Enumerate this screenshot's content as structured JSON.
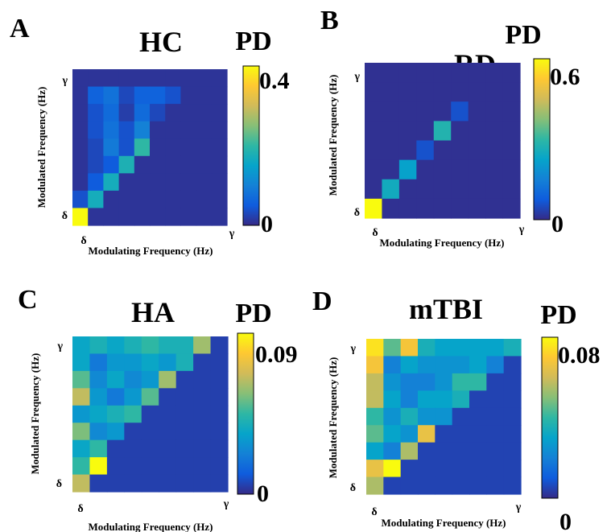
{
  "chart_data": [
    {
      "type": "heatmap",
      "panel": "A",
      "title": "HC",
      "colorbar_title": "PD",
      "colorbar_ticks": [
        "0.4",
        "0"
      ],
      "clim": [
        0,
        0.4
      ],
      "xlabel": "Modulating Frequency (Hz)",
      "ylabel": "Modulated Frequency (Hz)",
      "x_ticks": [
        "δ",
        "γ"
      ],
      "y_ticks": [
        "δ",
        "γ"
      ],
      "rows_top_to_bottom": [
        [
          0.01,
          0.01,
          0.01,
          0.01,
          0.01,
          0.01,
          0.01,
          0.01,
          0.01,
          0.01
        ],
        [
          0.01,
          0.06,
          0.08,
          0.03,
          0.06,
          0.06,
          0.04,
          0.01,
          0.01,
          0.01
        ],
        [
          0.01,
          0.04,
          0.07,
          0.02,
          0.07,
          0.03,
          0.01,
          0.01,
          0.01,
          0.01
        ],
        [
          0.01,
          0.04,
          0.08,
          0.04,
          0.1,
          0.01,
          0.01,
          0.01,
          0.01,
          0.01
        ],
        [
          0.01,
          0.03,
          0.09,
          0.04,
          0.2,
          0.01,
          0.01,
          0.01,
          0.01,
          0.01
        ],
        [
          0.01,
          0.03,
          0.05,
          0.18,
          0.01,
          0.01,
          0.01,
          0.01,
          0.01,
          0.01
        ],
        [
          0.01,
          0.05,
          0.17,
          0.01,
          0.01,
          0.01,
          0.01,
          0.01,
          0.01,
          0.01
        ],
        [
          0.04,
          0.17,
          0.01,
          0.01,
          0.01,
          0.01,
          0.01,
          0.01,
          0.01,
          0.01
        ],
        [
          0.4,
          0.01,
          0.01,
          0.01,
          0.01,
          0.01,
          0.01,
          0.01,
          0.01,
          0.01
        ]
      ]
    },
    {
      "type": "heatmap",
      "panel": "B",
      "title": "RD",
      "colorbar_title": "PD",
      "colorbar_ticks": [
        "0.6",
        "0"
      ],
      "clim": [
        0,
        0.6
      ],
      "xlabel": "Modulating Frequency (Hz)",
      "ylabel": "Modulated Frequency (Hz)",
      "x_ticks": [
        "δ",
        "γ"
      ],
      "y_ticks": [
        "δ",
        "γ"
      ],
      "rows_top_to_bottom": [
        [
          0.01,
          0.01,
          0.01,
          0.01,
          0.01,
          0.01,
          0.01,
          0.01,
          0.01
        ],
        [
          0.01,
          0.01,
          0.01,
          0.01,
          0.01,
          0.01,
          0.01,
          0.01,
          0.01
        ],
        [
          0.01,
          0.01,
          0.01,
          0.01,
          0.01,
          0.06,
          0.01,
          0.01,
          0.01
        ],
        [
          0.01,
          0.01,
          0.01,
          0.01,
          0.28,
          0.01,
          0.01,
          0.01,
          0.01
        ],
        [
          0.01,
          0.01,
          0.01,
          0.06,
          0.01,
          0.01,
          0.01,
          0.01,
          0.01
        ],
        [
          0.01,
          0.01,
          0.22,
          0.01,
          0.01,
          0.01,
          0.01,
          0.01,
          0.01
        ],
        [
          0.01,
          0.25,
          0.01,
          0.01,
          0.01,
          0.01,
          0.01,
          0.01,
          0.01
        ],
        [
          0.6,
          0.01,
          0.01,
          0.01,
          0.01,
          0.01,
          0.01,
          0.01,
          0.01
        ]
      ]
    },
    {
      "type": "heatmap",
      "panel": "C",
      "title": "HA",
      "colorbar_title": "PD",
      "colorbar_ticks": [
        "0.09",
        "0"
      ],
      "clim": [
        0,
        0.09
      ],
      "xlabel": "Modulating Frequency (Hz)",
      "ylabel": "Modulated Frequency (Hz)",
      "x_ticks": [
        "δ",
        "γ"
      ],
      "y_ticks": [
        "δ",
        "γ"
      ],
      "rows_top_to_bottom": [
        [
          0.035,
          0.04,
          0.035,
          0.04,
          0.045,
          0.04,
          0.04,
          0.06,
          0.005
        ],
        [
          0.035,
          0.02,
          0.03,
          0.03,
          0.035,
          0.03,
          0.04,
          0.005,
          0.005
        ],
        [
          0.05,
          0.025,
          0.035,
          0.025,
          0.03,
          0.06,
          0.005,
          0.005,
          0.005
        ],
        [
          0.065,
          0.03,
          0.02,
          0.03,
          0.05,
          0.005,
          0.005,
          0.005,
          0.005
        ],
        [
          0.03,
          0.035,
          0.04,
          0.045,
          0.005,
          0.005,
          0.005,
          0.005,
          0.005
        ],
        [
          0.055,
          0.025,
          0.03,
          0.005,
          0.005,
          0.005,
          0.005,
          0.005,
          0.005
        ],
        [
          0.035,
          0.045,
          0.005,
          0.005,
          0.005,
          0.005,
          0.005,
          0.005,
          0.005
        ],
        [
          0.045,
          0.09,
          0.005,
          0.005,
          0.005,
          0.005,
          0.005,
          0.005,
          0.005
        ],
        [
          0.065,
          0.005,
          0.005,
          0.005,
          0.005,
          0.005,
          0.005,
          0.005,
          0.005
        ]
      ]
    },
    {
      "type": "heatmap",
      "panel": "D",
      "title": "mTBI",
      "colorbar_title": "PD",
      "colorbar_ticks": [
        "0.08",
        "0"
      ],
      "clim": [
        0,
        0.08
      ],
      "xlabel": "Modulating Frequency (Hz)",
      "ylabel": "Modulated Frequency (Hz)",
      "x_ticks": [
        "δ",
        "γ"
      ],
      "y_ticks": [
        "δ",
        "γ"
      ],
      "rows_top_to_bottom": [
        [
          0.075,
          0.045,
          0.068,
          0.035,
          0.03,
          0.03,
          0.03,
          0.03,
          0.035
        ],
        [
          0.068,
          0.02,
          0.03,
          0.025,
          0.025,
          0.025,
          0.03,
          0.02,
          0.005
        ],
        [
          0.058,
          0.025,
          0.02,
          0.02,
          0.025,
          0.04,
          0.04,
          0.005,
          0.005
        ],
        [
          0.058,
          0.03,
          0.02,
          0.03,
          0.03,
          0.035,
          0.005,
          0.005,
          0.005
        ],
        [
          0.04,
          0.025,
          0.035,
          0.025,
          0.025,
          0.005,
          0.005,
          0.005,
          0.005
        ],
        [
          0.045,
          0.03,
          0.025,
          0.065,
          0.005,
          0.005,
          0.005,
          0.005,
          0.005
        ],
        [
          0.03,
          0.02,
          0.055,
          0.005,
          0.005,
          0.005,
          0.005,
          0.005,
          0.005
        ],
        [
          0.065,
          0.08,
          0.005,
          0.005,
          0.005,
          0.005,
          0.005,
          0.005,
          0.005
        ],
        [
          0.055,
          0.005,
          0.005,
          0.005,
          0.005,
          0.005,
          0.005,
          0.005,
          0.005
        ]
      ]
    }
  ]
}
